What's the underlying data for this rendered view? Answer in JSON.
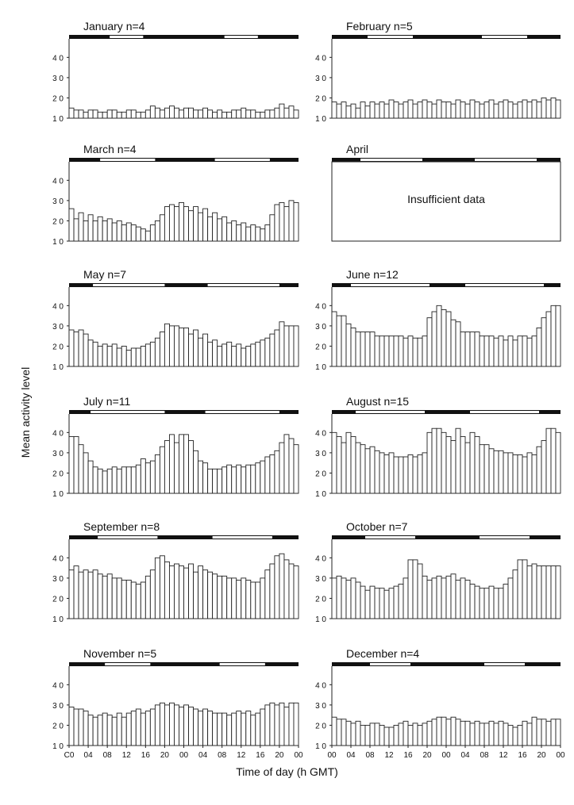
{
  "chart_data": {
    "type": "bar",
    "ylabel": "Mean activity level",
    "xlabel": "Time of day (h GMT)",
    "ylim": [
      10,
      46
    ],
    "y_ticks": [
      10,
      20,
      30,
      40
    ],
    "y_tick_labels": [
      "1 0",
      "2 0",
      "3 0",
      "4 0"
    ],
    "x_tick_labels_left": [
      "C0",
      "04",
      "08",
      "12",
      "16",
      "20",
      "00",
      "04",
      "08",
      "12",
      "16",
      "20",
      "00"
    ],
    "x_tick_labels_right": [
      "00",
      "04",
      "08",
      "12",
      "16",
      "20",
      "00",
      "04",
      "08",
      "12",
      "16",
      "20",
      "00"
    ],
    "x_range_hours": [
      0,
      48
    ],
    "bin_hours": 1,
    "panels": [
      {
        "month": "January",
        "title": "January  n=4",
        "light_bars": [
          [
            8.5,
            15.5
          ],
          [
            32.5,
            39.5
          ]
        ],
        "values": [
          15,
          14,
          14,
          13,
          14,
          14,
          13,
          13,
          14,
          14,
          13,
          13,
          14,
          14,
          13,
          13,
          14,
          16,
          15,
          14,
          15,
          16,
          15,
          14,
          15,
          15,
          14,
          14,
          15,
          14,
          13,
          14,
          13,
          13,
          14,
          14,
          15,
          14,
          14,
          13,
          13,
          14,
          14,
          15,
          17,
          15,
          16,
          14
        ]
      },
      {
        "month": "February",
        "title": "February  n=5",
        "light_bars": [
          [
            7.5,
            17
          ],
          [
            31.5,
            41
          ]
        ],
        "values": [
          18,
          17,
          18,
          16,
          17,
          15,
          18,
          16,
          18,
          17,
          18,
          17,
          19,
          18,
          17,
          18,
          19,
          17,
          18,
          19,
          18,
          17,
          19,
          18,
          18,
          17,
          19,
          18,
          17,
          19,
          18,
          17,
          18,
          19,
          17,
          18,
          19,
          18,
          17,
          18,
          19,
          18,
          19,
          18,
          20,
          19,
          20,
          19
        ]
      },
      {
        "month": "March",
        "title": "March  n=4",
        "light_bars": [
          [
            6.5,
            18
          ],
          [
            30.5,
            42
          ]
        ],
        "values": [
          26,
          21,
          24,
          20,
          23,
          20,
          22,
          20,
          21,
          19,
          20,
          18,
          19,
          18,
          17,
          16,
          15,
          18,
          20,
          23,
          27,
          28,
          27,
          29,
          27,
          25,
          27,
          24,
          26,
          22,
          24,
          21,
          22,
          19,
          20,
          18,
          19,
          17,
          18,
          17,
          16,
          18,
          23,
          28,
          29,
          27,
          30,
          29
        ]
      },
      {
        "month": "April",
        "title": "April",
        "light_bars": [
          [
            6,
            19
          ],
          [
            30,
            43
          ]
        ],
        "insufficient": "Insufficient data",
        "values": []
      },
      {
        "month": "May",
        "title": "May  n=7",
        "light_bars": [
          [
            5,
            20
          ],
          [
            29,
            44
          ]
        ],
        "values": [
          28,
          27,
          28,
          26,
          23,
          22,
          20,
          21,
          20,
          21,
          19,
          20,
          18,
          19,
          19,
          20,
          21,
          22,
          24,
          27,
          31,
          30,
          30,
          29,
          29,
          26,
          28,
          24,
          26,
          22,
          23,
          20,
          21,
          22,
          20,
          21,
          19,
          20,
          21,
          22,
          23,
          24,
          26,
          28,
          32,
          30,
          30,
          30
        ]
      },
      {
        "month": "June",
        "title": "June  n=12",
        "light_bars": [
          [
            4,
            20.5
          ],
          [
            28,
            44.5
          ]
        ],
        "values": [
          37,
          35,
          35,
          31,
          29,
          27,
          27,
          27,
          27,
          25,
          25,
          25,
          25,
          25,
          25,
          24,
          25,
          24,
          24,
          25,
          34,
          37,
          40,
          38,
          37,
          33,
          32,
          27,
          27,
          27,
          27,
          25,
          25,
          25,
          24,
          25,
          23,
          25,
          23,
          25,
          25,
          24,
          25,
          29,
          34,
          37,
          40,
          40
        ]
      },
      {
        "month": "July",
        "title": "July  n=11",
        "light_bars": [
          [
            4.5,
            20
          ],
          [
            28.5,
            44
          ]
        ],
        "values": [
          38,
          38,
          34,
          30,
          26,
          23,
          22,
          21,
          22,
          23,
          22,
          23,
          23,
          23,
          24,
          27,
          25,
          26,
          29,
          33,
          36,
          39,
          35,
          39,
          39,
          36,
          31,
          26,
          25,
          22,
          22,
          22,
          23,
          24,
          23,
          24,
          23,
          24,
          24,
          25,
          26,
          28,
          29,
          31,
          35,
          39,
          37,
          34
        ]
      },
      {
        "month": "August",
        "title": "August  n=15",
        "light_bars": [
          [
            5,
            19.5
          ],
          [
            29,
            43.5
          ]
        ],
        "values": [
          40,
          38,
          35,
          40,
          38,
          35,
          34,
          32,
          33,
          31,
          30,
          29,
          30,
          28,
          28,
          28,
          29,
          28,
          29,
          30,
          40,
          42,
          42,
          40,
          38,
          36,
          42,
          38,
          35,
          40,
          38,
          34,
          34,
          32,
          31,
          31,
          30,
          30,
          29,
          29,
          28,
          30,
          29,
          33,
          36,
          42,
          42,
          40
        ]
      },
      {
        "month": "September",
        "title": "September  n=8",
        "light_bars": [
          [
            6,
            18.5
          ],
          [
            30,
            42.5
          ]
        ],
        "values": [
          34,
          36,
          33,
          34,
          33,
          34,
          32,
          31,
          32,
          30,
          30,
          29,
          29,
          28,
          27,
          28,
          31,
          34,
          40,
          41,
          38,
          36,
          37,
          36,
          35,
          37,
          33,
          36,
          34,
          33,
          32,
          31,
          31,
          30,
          30,
          29,
          30,
          29,
          28,
          28,
          30,
          34,
          37,
          41,
          42,
          39,
          37,
          36
        ]
      },
      {
        "month": "October",
        "title": "October  n=7",
        "light_bars": [
          [
            7,
            17.5
          ],
          [
            31,
            41.5
          ]
        ],
        "values": [
          30,
          31,
          30,
          29,
          30,
          28,
          26,
          24,
          26,
          25,
          25,
          24,
          25,
          26,
          27,
          30,
          39,
          39,
          37,
          31,
          29,
          30,
          31,
          30,
          31,
          32,
          29,
          30,
          29,
          27,
          26,
          25,
          25,
          26,
          25,
          25,
          27,
          30,
          34,
          39,
          39,
          36,
          37,
          36,
          36,
          36,
          36,
          36
        ]
      },
      {
        "month": "November",
        "title": "November  n=5",
        "light_bars": [
          [
            7.5,
            17
          ],
          [
            31.5,
            41
          ]
        ],
        "values": [
          29,
          28,
          28,
          27,
          25,
          24,
          25,
          26,
          25,
          24,
          26,
          24,
          26,
          27,
          28,
          26,
          27,
          28,
          30,
          31,
          30,
          31,
          30,
          29,
          30,
          29,
          28,
          27,
          28,
          27,
          26,
          26,
          26,
          25,
          26,
          27,
          26,
          27,
          25,
          26,
          28,
          30,
          31,
          30,
          31,
          29,
          31,
          31
        ]
      },
      {
        "month": "December",
        "title": "December  n=4",
        "light_bars": [
          [
            8,
            16.5
          ],
          [
            32,
            40.5
          ]
        ],
        "values": [
          24,
          23,
          23,
          22,
          21,
          22,
          20,
          20,
          21,
          21,
          20,
          19,
          19,
          20,
          21,
          22,
          20,
          21,
          20,
          21,
          22,
          23,
          24,
          24,
          23,
          24,
          23,
          22,
          22,
          21,
          22,
          21,
          21,
          22,
          21,
          22,
          21,
          20,
          19,
          20,
          22,
          21,
          24,
          23,
          23,
          22,
          23,
          23
        ]
      }
    ]
  }
}
